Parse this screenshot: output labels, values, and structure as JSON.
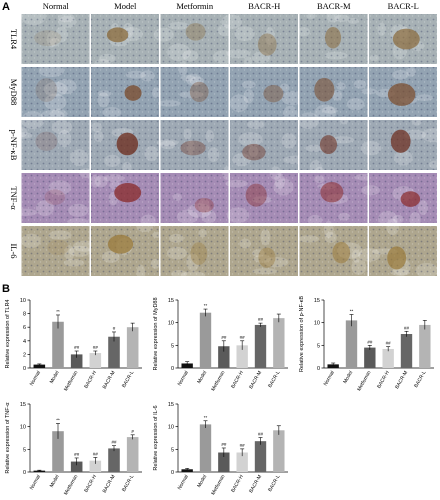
{
  "panel_a": {
    "label": "A",
    "columns": [
      "Normal",
      "Model",
      "Metformin",
      "BACR-H",
      "BACR-M",
      "BACR-L"
    ],
    "rows": [
      "TLR4",
      "MyD88",
      "p-NF-κB",
      "TNF-α",
      "IL-6"
    ]
  },
  "panel_b": {
    "label": "B"
  },
  "chart_data": [
    {
      "type": "bar",
      "y_label": "Relative expression of TLR4",
      "categories": [
        "Normal",
        "Model",
        "Metformin",
        "BACR-H",
        "BACR-M",
        "BACR-L"
      ],
      "values": [
        0.5,
        6.8,
        2.0,
        2.2,
        4.6,
        6.0
      ],
      "errors": [
        0.1,
        1.0,
        0.5,
        0.3,
        0.7,
        0.6
      ],
      "annotations": [
        null,
        "**",
        "##",
        "##",
        "#",
        null
      ],
      "colors": [
        "#111111",
        "#9a9a9a",
        "#5a5a5a",
        "#d2d2d2",
        "#666666",
        "#b4b4b4"
      ],
      "ylim": [
        0,
        10
      ],
      "yticks": [
        0,
        2,
        4,
        6,
        8,
        10
      ]
    },
    {
      "type": "bar",
      "y_label": "Relative expression of MyD88",
      "categories": [
        "Normal",
        "Model",
        "Metformin",
        "BACR-H",
        "BACR-M",
        "BACR-L"
      ],
      "values": [
        1.0,
        12.2,
        4.8,
        5.0,
        9.5,
        11.0
      ],
      "errors": [
        0.4,
        0.8,
        1.2,
        1.0,
        0.4,
        0.9
      ],
      "annotations": [
        null,
        "**",
        "##",
        "##",
        "##",
        null
      ],
      "colors": [
        "#111111",
        "#9a9a9a",
        "#5a5a5a",
        "#d2d2d2",
        "#666666",
        "#b4b4b4"
      ],
      "ylim": [
        0,
        15
      ],
      "yticks": [
        0,
        5,
        10,
        15
      ]
    },
    {
      "type": "bar",
      "y_label": "Relative expression of p-NF-κB",
      "categories": [
        "Normal",
        "Model",
        "Metformin",
        "BACR-H",
        "BACR-M",
        "BACR-L"
      ],
      "values": [
        0.8,
        10.5,
        4.5,
        4.2,
        7.5,
        9.5
      ],
      "errors": [
        0.3,
        1.3,
        0.5,
        0.5,
        0.6,
        1.0
      ],
      "annotations": [
        null,
        "**",
        "##",
        "##",
        "##",
        null
      ],
      "colors": [
        "#111111",
        "#9a9a9a",
        "#5a5a5a",
        "#d2d2d2",
        "#666666",
        "#b4b4b4"
      ],
      "ylim": [
        0,
        15
      ],
      "yticks": [
        0,
        5,
        10,
        15
      ]
    },
    {
      "type": "bar",
      "y_label": "Relative expression of TNF-α",
      "categories": [
        "Normal",
        "Model",
        "Metformin",
        "BACR-H",
        "BACR-M",
        "BACR-L"
      ],
      "values": [
        0.3,
        9.0,
        2.3,
        2.5,
        5.2,
        7.7
      ],
      "errors": [
        0.1,
        1.7,
        0.8,
        0.7,
        0.6,
        0.5
      ],
      "annotations": [
        null,
        "**",
        "##",
        "##",
        "##",
        "#"
      ],
      "colors": [
        "#111111",
        "#9a9a9a",
        "#5a5a5a",
        "#d2d2d2",
        "#666666",
        "#b4b4b4"
      ],
      "ylim": [
        0,
        15
      ],
      "yticks": [
        0,
        5,
        10,
        15
      ]
    },
    {
      "type": "bar",
      "y_label": "Relative expression of IL-6",
      "categories": [
        "Normal",
        "Model",
        "Metformin",
        "BACR-H",
        "BACR-M",
        "BACR-L"
      ],
      "values": [
        0.6,
        10.5,
        4.3,
        4.3,
        6.8,
        9.2
      ],
      "errors": [
        0.2,
        0.8,
        1.0,
        0.8,
        0.8,
        1.0
      ],
      "annotations": [
        null,
        "**",
        "##",
        "##",
        "##",
        null
      ],
      "colors": [
        "#111111",
        "#9a9a9a",
        "#5a5a5a",
        "#d2d2d2",
        "#666666",
        "#b4b4b4"
      ],
      "ylim": [
        0,
        15
      ],
      "yticks": [
        0,
        5,
        10,
        15
      ]
    }
  ]
}
